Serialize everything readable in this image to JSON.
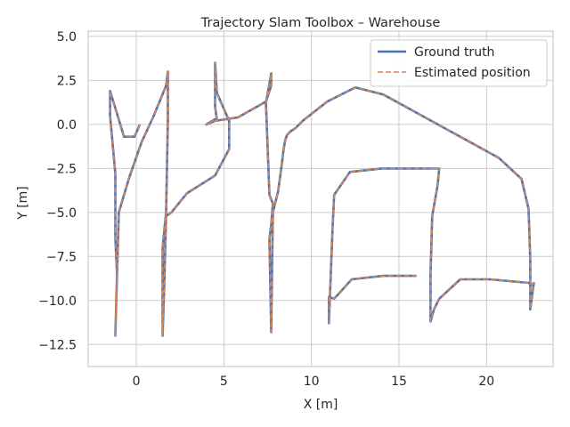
{
  "chart_data": {
    "type": "line",
    "title": "Trajectory Slam Toolbox – Warehouse",
    "xlabel": "X [m]",
    "ylabel": "Y [m]",
    "xlim": [
      -2.75,
      23.8
    ],
    "ylim": [
      -13.75,
      5.3
    ],
    "xticks": [
      0,
      5,
      10,
      15,
      20
    ],
    "yticks": [
      5.0,
      2.5,
      0.0,
      -2.5,
      -5.0,
      -7.5,
      -10.0,
      -12.5
    ],
    "xtick_labels": [
      "0",
      "5",
      "10",
      "15",
      "20"
    ],
    "ytick_labels": [
      "5.0",
      "2.5",
      "0.0",
      "−2.5",
      "−5.0",
      "−7.5",
      "−10.0",
      "−12.5"
    ],
    "grid": true,
    "legend_position": "upper right",
    "colors": {
      "ground_truth": "#4c72b0",
      "estimated": "#dd8452",
      "grid": "#cccccc",
      "spine": "#cccccc"
    },
    "series": [
      {
        "name": "Ground truth",
        "style": "solid",
        "x": [
          0.2,
          -0.1,
          -0.7,
          -1.5,
          -1.5,
          -1.2,
          -1.2,
          -1.2,
          -1.1,
          -1.2,
          -1.0,
          -0.4,
          0.3,
          1.0,
          1.7,
          1.8,
          1.8,
          1.7,
          1.6,
          1.5,
          1.5,
          1.6,
          1.7,
          2.0,
          2.9,
          4.5,
          5.3,
          5.3,
          4.6,
          4.5,
          4.5,
          4.6,
          4.5,
          4.0,
          4.5,
          5.8,
          7.4,
          7.7,
          7.7,
          7.4,
          7.6,
          7.8,
          7.7,
          7.6,
          7.7,
          7.8,
          8.1,
          8.3,
          8.4,
          8.5,
          8.6,
          8.8,
          9.1,
          9.5,
          10.9,
          12.5,
          14.1,
          20.7,
          22.0,
          22.4,
          22.5,
          22.5,
          22.5,
          22.7,
          22.6,
          22.4,
          20.2,
          18.5,
          17.3,
          17.0,
          16.8,
          16.8,
          16.9,
          17.2,
          17.3,
          16.8,
          16.7,
          16.8,
          17.0,
          17.2,
          14.0,
          12.2,
          11.3,
          11.2,
          11.0,
          11.0,
          11.3,
          12.3,
          14.1,
          16.0,
          16.0
        ],
        "y": [
          0.0,
          -0.7,
          -0.7,
          1.9,
          0.5,
          -2.8,
          -5.0,
          -6.5,
          -8.5,
          -12.0,
          -5.0,
          -3.0,
          -1.0,
          0.5,
          2.2,
          3.0,
          0.3,
          -5.0,
          -6.0,
          -7.0,
          -12.0,
          -9.0,
          -5.2,
          -5.0,
          -3.9,
          -2.9,
          -1.4,
          0.2,
          1.8,
          3.5,
          1.0,
          0.3,
          0.3,
          0.0,
          0.2,
          0.4,
          1.3,
          2.2,
          2.9,
          1.2,
          -4.0,
          -4.5,
          -5.7,
          -6.5,
          -11.8,
          -5.0,
          -3.8,
          -2.3,
          -1.5,
          -0.9,
          -0.6,
          -0.4,
          -0.2,
          0.2,
          1.3,
          2.1,
          1.7,
          -1.9,
          -3.1,
          -4.8,
          -7.7,
          -9.1,
          -10.5,
          -9.0,
          -9.1,
          -9.0,
          -8.8,
          -8.8,
          -9.9,
          -10.5,
          -11.2,
          -8.5,
          -5.2,
          -3.5,
          -2.5,
          -2.5,
          -2.5,
          -2.5,
          -2.5,
          -2.5,
          -2.5,
          -2.7,
          -4.0,
          -6.0,
          -11.3,
          -9.8,
          -9.9,
          -8.8,
          -8.6,
          -8.6,
          -8.6
        ],
        "color": "#4c72b0"
      },
      {
        "name": "Estimated position",
        "style": "dashed",
        "x": [
          0.2,
          -0.1,
          -0.7,
          -1.5,
          -1.5,
          -1.2,
          -1.2,
          -1.2,
          -1.1,
          -1.2,
          -1.0,
          -0.4,
          0.3,
          1.0,
          1.7,
          1.8,
          1.8,
          1.7,
          1.6,
          1.5,
          1.5,
          1.6,
          1.7,
          2.0,
          2.9,
          4.5,
          5.3,
          5.3,
          4.6,
          4.5,
          4.5,
          4.6,
          4.5,
          4.0,
          4.5,
          5.8,
          7.4,
          7.7,
          7.7,
          7.4,
          7.6,
          7.8,
          7.7,
          7.6,
          7.7,
          7.8,
          8.1,
          8.3,
          8.4,
          8.5,
          8.6,
          8.8,
          9.1,
          9.5,
          10.9,
          12.5,
          14.1,
          20.7,
          22.0,
          22.4,
          22.5,
          22.5,
          22.5,
          22.7,
          22.6,
          22.4,
          20.2,
          18.5,
          17.3,
          17.0,
          16.8,
          16.8,
          16.9,
          17.2,
          17.3,
          16.8,
          16.7,
          16.8,
          17.0,
          17.2,
          14.0,
          12.2,
          11.3,
          11.2,
          11.0,
          11.0,
          11.3,
          12.3,
          14.1,
          16.0,
          16.0
        ],
        "y": [
          0.0,
          -0.7,
          -0.7,
          1.9,
          0.5,
          -2.8,
          -5.0,
          -6.5,
          -8.5,
          -12.0,
          -5.0,
          -3.0,
          -1.0,
          0.5,
          2.2,
          3.0,
          0.3,
          -5.0,
          -6.0,
          -7.0,
          -12.0,
          -9.0,
          -5.2,
          -5.0,
          -3.9,
          -2.9,
          -1.4,
          0.2,
          1.8,
          3.5,
          1.0,
          0.3,
          0.3,
          0.0,
          0.2,
          0.4,
          1.3,
          2.2,
          2.9,
          1.2,
          -4.0,
          -4.5,
          -5.7,
          -6.5,
          -11.8,
          -5.0,
          -3.8,
          -2.3,
          -1.5,
          -0.9,
          -0.6,
          -0.4,
          -0.2,
          0.2,
          1.3,
          2.1,
          1.7,
          -1.9,
          -3.1,
          -4.8,
          -7.7,
          -9.1,
          -10.5,
          -9.0,
          -9.1,
          -9.0,
          -8.8,
          -8.8,
          -9.9,
          -10.5,
          -11.2,
          -8.5,
          -5.2,
          -3.5,
          -2.5,
          -2.5,
          -2.5,
          -2.5,
          -2.5,
          -2.5,
          -2.5,
          -2.7,
          -4.0,
          -6.0,
          -11.3,
          -9.8,
          -9.9,
          -8.8,
          -8.6,
          -8.6,
          -8.6
        ],
        "color": "#dd8452"
      }
    ]
  }
}
